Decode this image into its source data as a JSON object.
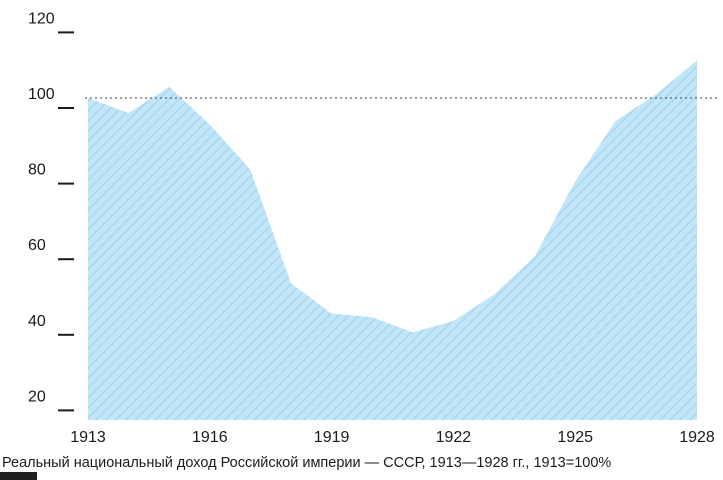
{
  "chart_data": {
    "type": "area",
    "x": [
      1913,
      1914,
      1915,
      1916,
      1917,
      1918,
      1919,
      1920,
      1921,
      1922,
      1923,
      1924,
      1925,
      1926,
      1927,
      1928
    ],
    "values": [
      100,
      96,
      103,
      93,
      81,
      51,
      43,
      42,
      38,
      41,
      48,
      58,
      78,
      94,
      101,
      110
    ],
    "title": "",
    "xlabel": "",
    "ylabel": "",
    "ylim": [
      20,
      120
    ],
    "yticks": [
      120,
      100,
      80,
      60,
      40,
      20
    ],
    "xticks": [
      1913,
      1916,
      1919,
      1922,
      1925,
      1928
    ],
    "reference_line": 100,
    "grid": "reference-line-only",
    "legend": "none",
    "caption": "Реальный национальный доход Российской империи — СССР, 1913—1928 гг., 1913=100%",
    "colors": {
      "area_fill": "#c3e5f8",
      "area_hatch": "#a4d7f2",
      "axis_text": "#1a1a1a",
      "tick_mark": "#1a1a1a",
      "reference_line": "#444444",
      "background": "#ffffff"
    }
  }
}
